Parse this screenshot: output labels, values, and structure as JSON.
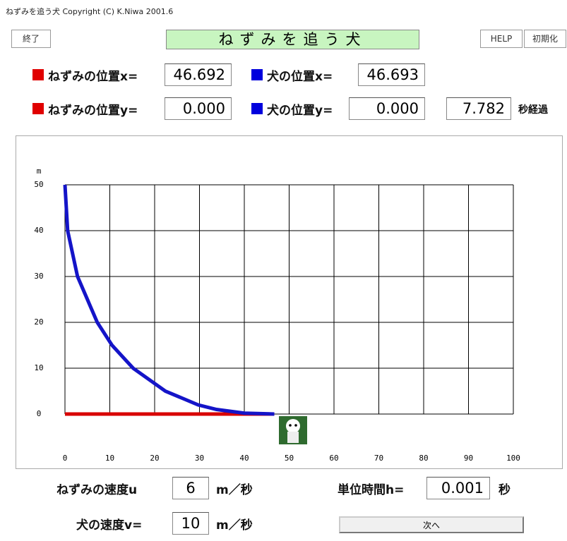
{
  "window_title": "ねずみを追う犬  Copyright (C) K.Niwa 2001.6",
  "toolbar": {
    "quit": "終了",
    "title": "ねずみを追う犬",
    "help": "HELP",
    "reset": "初期化"
  },
  "readouts": {
    "mouse_x_label": "ねずみの位置x=",
    "mouse_x": "46.692",
    "dog_x_label": "犬の位置x=",
    "dog_x": "46.693",
    "mouse_y_label": "ねずみの位置y=",
    "mouse_y": "0.000",
    "dog_y_label": "犬の位置y=",
    "dog_y": "0.000",
    "time": "7.782",
    "time_unit": "秒経過"
  },
  "chart_data": {
    "type": "line",
    "y_unit": "m",
    "xlim": [
      0,
      100
    ],
    "ylim": [
      0,
      50
    ],
    "xticks": [
      0,
      10,
      20,
      30,
      40,
      50,
      60,
      70,
      80,
      90,
      100
    ],
    "yticks": [
      0,
      10,
      20,
      30,
      40,
      50
    ],
    "grid": true,
    "series": [
      {
        "color": "#d80000",
        "x": [
          0,
          46.692
        ],
        "values": [
          0,
          0
        ]
      },
      {
        "color": "#1414c8",
        "x": [
          0,
          0.6,
          2.8,
          7.2,
          10.5,
          15.2,
          22.4,
          29.7,
          33.8,
          40.0,
          46.693
        ],
        "values": [
          50,
          40,
          30,
          20,
          15,
          10,
          5,
          2,
          1,
          0.2,
          0
        ]
      }
    ]
  },
  "controls": {
    "mouse_speed_label": "ねずみの速度u",
    "mouse_speed": "6",
    "mouse_speed_unit": "m／秒",
    "dog_speed_label": "犬の速度v=",
    "dog_speed": "10",
    "dog_speed_unit": "m／秒",
    "step_label": "単位時間h=",
    "step": "0.001",
    "step_unit": "秒",
    "next": "次へ"
  }
}
